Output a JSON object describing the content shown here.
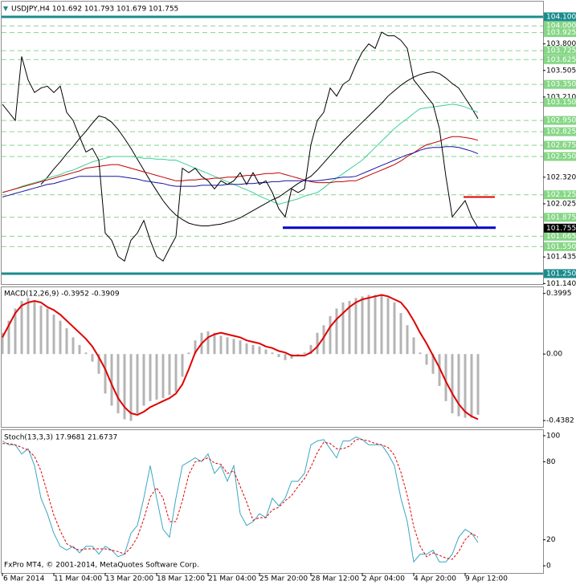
{
  "chart_data": [
    {
      "type": "line",
      "title": "USDJPY,H4 101.692 101.793 101.679 101.755",
      "categories": [
        "6 Mar 2014",
        null,
        null,
        null,
        null,
        null,
        null,
        null,
        "11 Mar 04:00",
        null,
        null,
        null,
        null,
        null,
        null,
        null,
        "13 Mar 20:00",
        null,
        null,
        null,
        null,
        null,
        null,
        null,
        "18 Mar 12:00",
        null,
        null,
        null,
        null,
        null,
        null,
        null,
        "21 Mar 04:00",
        null,
        null,
        null,
        null,
        null,
        null,
        null,
        "25 Mar 20:00",
        null,
        null,
        null,
        null,
        null,
        null,
        null,
        "28 Mar 12:00",
        null,
        null,
        null,
        null,
        null,
        null,
        null,
        "2 Apr 04:00",
        null,
        null,
        null,
        null,
        null,
        null,
        null,
        "4 Apr 20:00",
        null,
        null,
        null,
        null,
        null,
        null,
        null,
        "9 Apr 12:00",
        null,
        null
      ],
      "series": [
        {
          "color": "#000000",
          "values": [
            null,
            null,
            null,
            null,
            null,
            null,
            102.24,
            102.32,
            102.41,
            102.49,
            102.58,
            102.66,
            102.75,
            102.83,
            102.92,
            103.0,
            102.98,
            102.93,
            102.85,
            102.75,
            102.64,
            102.52,
            102.4,
            102.28,
            102.17,
            102.06,
            101.97,
            101.9,
            101.85,
            101.81,
            101.79,
            101.78,
            101.78,
            101.79,
            101.8,
            101.82,
            101.84,
            101.87,
            101.91,
            101.95,
            101.99,
            102.03,
            102.07,
            102.1,
            102.15,
            102.2,
            102.25,
            102.29,
            102.33,
            102.4,
            102.48,
            102.56,
            102.64,
            102.72,
            102.79,
            102.86,
            102.93,
            103.0,
            103.07,
            103.14,
            103.22,
            103.28,
            103.34,
            103.39,
            103.43,
            103.46,
            103.48,
            103.49,
            103.47,
            103.42,
            103.36,
            103.31,
            103.2,
            103.09,
            102.97
          ]
        },
        {
          "color": "#3ccf96",
          "values": [
            102.15,
            102.17,
            102.19,
            102.22,
            102.24,
            102.26,
            102.28,
            102.31,
            102.33,
            102.35,
            102.38,
            102.4,
            102.43,
            102.46,
            102.49,
            102.51,
            102.53,
            102.55,
            102.55,
            102.55,
            102.55,
            102.54,
            102.53,
            102.53,
            102.52,
            102.52,
            102.51,
            102.51,
            102.48,
            102.45,
            102.42,
            102.39,
            102.36,
            102.33,
            102.3,
            102.27,
            102.24,
            102.21,
            102.18,
            102.15,
            102.11,
            102.08,
            102.05,
            102.02,
            102.04,
            102.06,
            102.08,
            102.11,
            102.13,
            102.15,
            102.2,
            102.26,
            102.31,
            102.36,
            102.41,
            102.46,
            102.51,
            102.58,
            102.65,
            102.72,
            102.79,
            102.86,
            102.92,
            102.97,
            103.03,
            103.08,
            103.09,
            103.1,
            103.11,
            103.12,
            103.13,
            103.12,
            103.1,
            103.07,
            103.04
          ]
        },
        {
          "color": "#c00000",
          "values": [
            102.15,
            102.17,
            102.19,
            102.21,
            102.23,
            102.25,
            102.27,
            102.29,
            102.31,
            102.33,
            102.35,
            102.37,
            102.39,
            102.42,
            102.43,
            102.44,
            102.45,
            102.46,
            102.46,
            102.44,
            102.42,
            102.4,
            102.38,
            102.36,
            102.34,
            102.32,
            102.3,
            102.28,
            102.28,
            102.29,
            102.29,
            102.3,
            102.3,
            102.31,
            102.31,
            102.32,
            102.32,
            102.33,
            102.34,
            102.34,
            102.35,
            102.36,
            102.36,
            102.37,
            102.35,
            102.33,
            102.31,
            102.29,
            102.27,
            102.26,
            102.26,
            102.26,
            102.27,
            102.27,
            102.28,
            102.28,
            102.31,
            102.34,
            102.37,
            102.4,
            102.43,
            102.46,
            102.5,
            102.55,
            102.59,
            102.64,
            102.68,
            102.7,
            102.72,
            102.75,
            102.77,
            102.77,
            102.76,
            102.75,
            102.73
          ]
        },
        {
          "color": "#1414a0",
          "values": [
            102.1,
            102.12,
            102.14,
            102.16,
            102.18,
            102.2,
            102.22,
            102.24,
            102.25,
            102.27,
            102.29,
            102.31,
            102.33,
            102.33,
            102.33,
            102.33,
            102.33,
            102.33,
            102.33,
            102.32,
            102.31,
            102.3,
            102.28,
            102.27,
            102.26,
            102.25,
            102.23,
            102.22,
            102.22,
            102.22,
            102.22,
            102.23,
            102.23,
            102.23,
            102.23,
            102.24,
            102.24,
            102.24,
            102.25,
            102.25,
            102.26,
            102.26,
            102.27,
            102.27,
            102.28,
            102.28,
            102.28,
            102.28,
            102.28,
            102.28,
            102.29,
            102.3,
            102.31,
            102.32,
            102.32,
            102.33,
            102.36,
            102.39,
            102.42,
            102.45,
            102.48,
            102.51,
            102.54,
            102.57,
            102.59,
            102.62,
            102.64,
            102.65,
            102.65,
            102.66,
            102.66,
            102.65,
            102.63,
            102.61,
            102.58
          ]
        },
        {
          "color": "#000000",
          "values": [
            103.13,
            103.04,
            102.95,
            103.66,
            103.4,
            103.26,
            103.31,
            103.33,
            103.26,
            103.33,
            103.04,
            102.95,
            102.77,
            102.6,
            102.64,
            102.51,
            101.7,
            101.62,
            101.44,
            101.39,
            101.62,
            101.7,
            101.84,
            101.62,
            101.44,
            101.39,
            101.53,
            101.66,
            102.42,
            102.37,
            102.42,
            102.33,
            102.28,
            102.19,
            102.28,
            102.24,
            102.28,
            102.37,
            102.24,
            102.37,
            102.24,
            102.28,
            102.15,
            101.97,
            101.88,
            102.19,
            102.15,
            102.19,
            102.68,
            102.95,
            103.04,
            103.31,
            103.22,
            103.35,
            103.4,
            103.57,
            103.71,
            103.8,
            103.75,
            103.93,
            103.89,
            103.89,
            103.84,
            103.75,
            103.4,
            103.31,
            103.22,
            103.13,
            102.86,
            102.33,
            101.88,
            101.97,
            102.06,
            101.88,
            101.76
          ]
        }
      ],
      "ylim": [
        101.134,
        104.269
      ],
      "yticks": [
        {
          "value": 103.8,
          "label": "103.800"
        },
        103.505,
        {
          "value": 103.21,
          "label": "103.210"
        },
        {
          "value": 102.32,
          "label": "102.320"
        },
        102.025,
        101.435,
        {
          "value": 101.14,
          "label": "101.140"
        }
      ],
      "levels": {
        "color": "#86d686",
        "items": [
          {
            "value": 104.0,
            "label": "104.000"
          },
          103.925,
          103.725,
          103.625,
          {
            "value": 103.35,
            "label": "103.350"
          },
          {
            "value": 103.15,
            "label": "103.150"
          },
          {
            "value": 102.95,
            "label": "102.950"
          },
          102.825,
          102.675,
          {
            "value": 102.55,
            "label": "102.550"
          },
          102.125,
          101.875,
          101.665,
          {
            "value": 101.55,
            "label": "101.550"
          }
        ]
      },
      "key_levels": {
        "color": "#1b8c8c",
        "items": [
          {
            "value": 104.1,
            "label": "104.100"
          },
          {
            "value": 101.25,
            "label": "101.250"
          }
        ]
      },
      "current_price": {
        "color": "#000000",
        "value": 101.755
      },
      "drawn_lines": [
        {
          "color": "#0000c8",
          "value": 101.76
        },
        {
          "color": "#e00000",
          "value": 102.1
        }
      ]
    },
    {
      "type": "macd",
      "title": "MACD(12,26,9) -0.3952 -0.3909",
      "series": [
        {
          "color": "#b4b4b4",
          "values": [
            0.14,
            0.22,
            0.3,
            0.35,
            0.37,
            0.35,
            0.32,
            0.3,
            0.26,
            0.22,
            0.17,
            0.11,
            0.06,
            0.01,
            -0.05,
            -0.13,
            -0.26,
            -0.34,
            -0.39,
            -0.43,
            -0.44,
            -0.39,
            -0.34,
            -0.31,
            -0.3,
            -0.29,
            -0.27,
            -0.25,
            -0.15,
            0.01,
            0.09,
            0.14,
            0.15,
            0.14,
            0.12,
            0.11,
            0.1,
            0.09,
            0.07,
            0.06,
            0.05,
            0.03,
            0.01,
            -0.02,
            -0.04,
            -0.03,
            -0.01,
            0.01,
            0.06,
            0.14,
            0.19,
            0.25,
            0.3,
            0.34,
            0.35,
            0.37,
            0.38,
            0.39,
            0.39,
            0.39,
            0.37,
            0.34,
            0.27,
            0.19,
            0.11,
            0.01,
            -0.07,
            -0.13,
            -0.21,
            -0.31,
            -0.39,
            -0.41,
            -0.42,
            -0.42,
            -0.4
          ]
        },
        {
          "color": "#e00000",
          "values": [
            0.11,
            0.19,
            0.27,
            0.32,
            0.34,
            0.35,
            0.34,
            0.31,
            0.29,
            0.26,
            0.22,
            0.18,
            0.14,
            0.1,
            0.05,
            -0.02,
            -0.1,
            -0.2,
            -0.29,
            -0.35,
            -0.39,
            -0.4,
            -0.38,
            -0.35,
            -0.33,
            -0.31,
            -0.29,
            -0.26,
            -0.2,
            -0.1,
            0.01,
            0.07,
            0.11,
            0.13,
            0.14,
            0.13,
            0.12,
            0.11,
            0.09,
            0.08,
            0.07,
            0.05,
            0.04,
            0.02,
            0.01,
            -0.01,
            -0.01,
            -0.01,
            0.01,
            0.05,
            0.11,
            0.18,
            0.23,
            0.27,
            0.31,
            0.34,
            0.36,
            0.37,
            0.38,
            0.39,
            0.38,
            0.36,
            0.34,
            0.29,
            0.22,
            0.14,
            0.07,
            -0.01,
            -0.09,
            -0.18,
            -0.26,
            -0.33,
            -0.38,
            -0.41,
            -0.43
          ]
        }
      ],
      "ylim": [
        -0.48,
        0.44
      ],
      "yticks": [
        0.3995,
        {
          "value": 0,
          "label": "0.00"
        },
        -0.4382
      ]
    },
    {
      "type": "stochastic",
      "title": "Stoch(13,3,3) 17.9681 21.6737",
      "series": [
        {
          "color": "#3aa6c4",
          "values": [
            96,
            93,
            93,
            86,
            90,
            77,
            52,
            40,
            25,
            15,
            12,
            15,
            10,
            15,
            15,
            9,
            15,
            12,
            7,
            9,
            25,
            31,
            52,
            77,
            52,
            28,
            22,
            52,
            77,
            80,
            83,
            80,
            86,
            71,
            77,
            65,
            77,
            40,
            31,
            34,
            40,
            37,
            52,
            46,
            52,
            65,
            65,
            71,
            93,
            96,
            97,
            90,
            83,
            96,
            96,
            99,
            97,
            93,
            93,
            93,
            86,
            77,
            52,
            34,
            3,
            9,
            9,
            12,
            3,
            3,
            9,
            22,
            28,
            25,
            18
          ]
        },
        {
          "color": "#e00000",
          "values": [
            94,
            94,
            93,
            91,
            89,
            84,
            73,
            56,
            39,
            27,
            17,
            14,
            12,
            13,
            13,
            13,
            13,
            12,
            11,
            9,
            14,
            22,
            36,
            53,
            60,
            52,
            34,
            34,
            50,
            70,
            80,
            81,
            83,
            79,
            78,
            71,
            73,
            61,
            49,
            35,
            37,
            37,
            43,
            45,
            50,
            54,
            61,
            67,
            76,
            87,
            95,
            94,
            90,
            90,
            92,
            97,
            97,
            96,
            94,
            93,
            91,
            85,
            72,
            54,
            30,
            15,
            7,
            10,
            8,
            6,
            5,
            11,
            20,
            25,
            22
          ]
        }
      ],
      "ylim": [
        -5.5,
        104.3
      ],
      "yticks": [
        0,
        20,
        80,
        100
      ],
      "annotation": "FxPro MT4, © 2001-2014, MetaQuotes Software Corp."
    }
  ]
}
